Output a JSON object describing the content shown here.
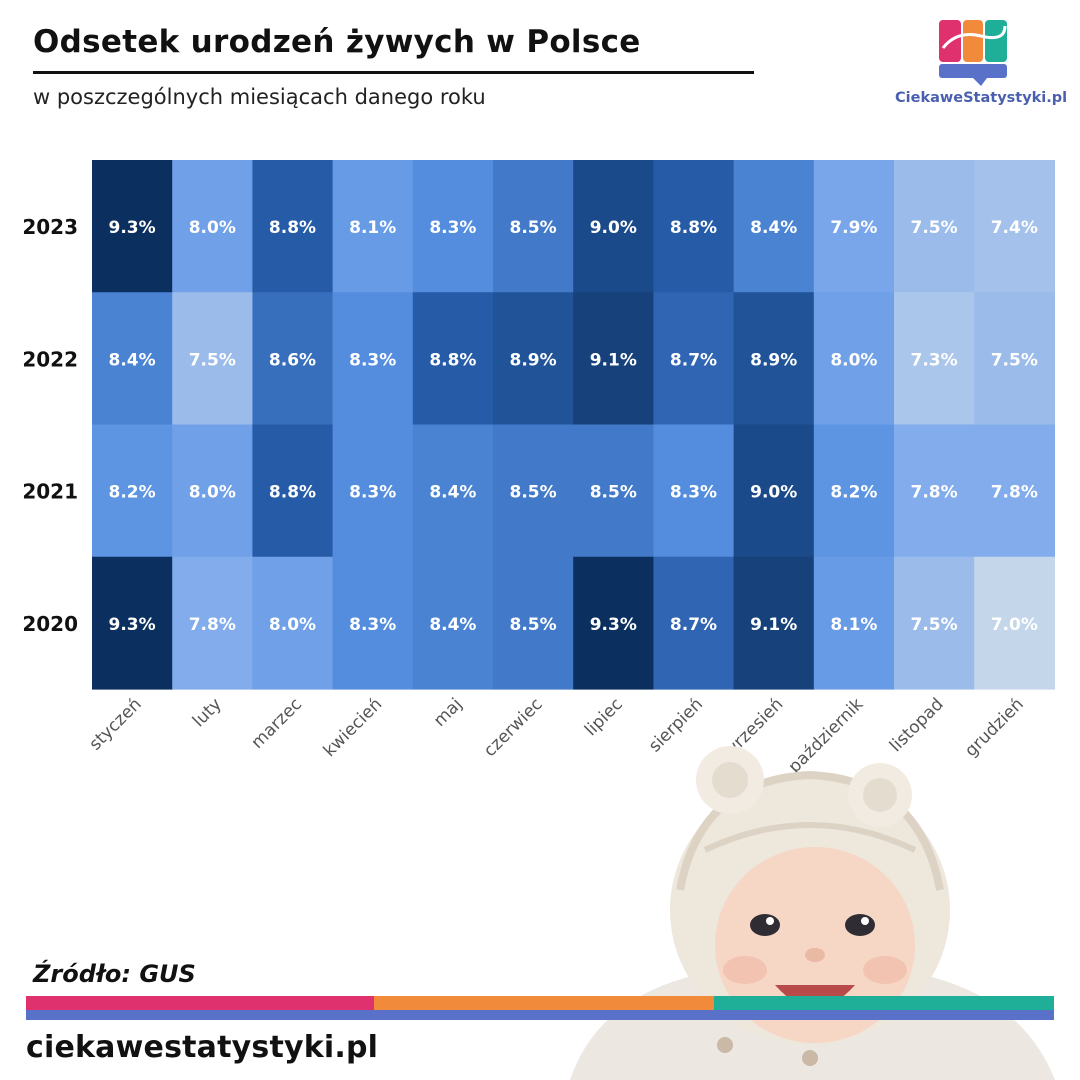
{
  "header": {
    "title": "Odsetek urodzeń żywych w Polsce",
    "subtitle": "w poszczególnych miesiącach danego roku"
  },
  "logo": {
    "text": "CiekaweStatystyki.pl"
  },
  "footer": {
    "source": "Źródło: GUS",
    "site": "ciekawestatystyki.pl"
  },
  "colors": {
    "stripe_pink": "#e0316f",
    "stripe_orange": "#f28a3c",
    "stripe_teal": "#1fae98",
    "stripe_blue": "#5a71c9",
    "heat_low": "#c4d6ea",
    "heat_mid": "#5c93e6",
    "heat_high": "#0b2f5e"
  },
  "chart_data": {
    "type": "heatmap",
    "x_categories": [
      "styczeń",
      "luty",
      "marzec",
      "kwiecień",
      "maj",
      "czerwiec",
      "lipiec",
      "sierpień",
      "wrzesień",
      "październik",
      "listopad",
      "grudzień"
    ],
    "y_categories": [
      "2023",
      "2022",
      "2021",
      "2020"
    ],
    "values": [
      [
        9.3,
        8.0,
        8.8,
        8.1,
        8.3,
        8.5,
        9.0,
        8.8,
        8.4,
        7.9,
        7.5,
        7.4
      ],
      [
        8.4,
        7.5,
        8.6,
        8.3,
        8.8,
        8.9,
        9.1,
        8.7,
        8.9,
        8.0,
        7.3,
        7.5
      ],
      [
        8.2,
        8.0,
        8.8,
        8.3,
        8.4,
        8.5,
        8.5,
        8.3,
        9.0,
        8.2,
        7.8,
        7.8
      ],
      [
        9.3,
        7.8,
        8.0,
        8.3,
        8.4,
        8.5,
        9.3,
        8.7,
        9.1,
        8.1,
        7.5,
        7.0
      ]
    ],
    "value_suffix": "%",
    "color_range": [
      7.0,
      9.3
    ]
  }
}
